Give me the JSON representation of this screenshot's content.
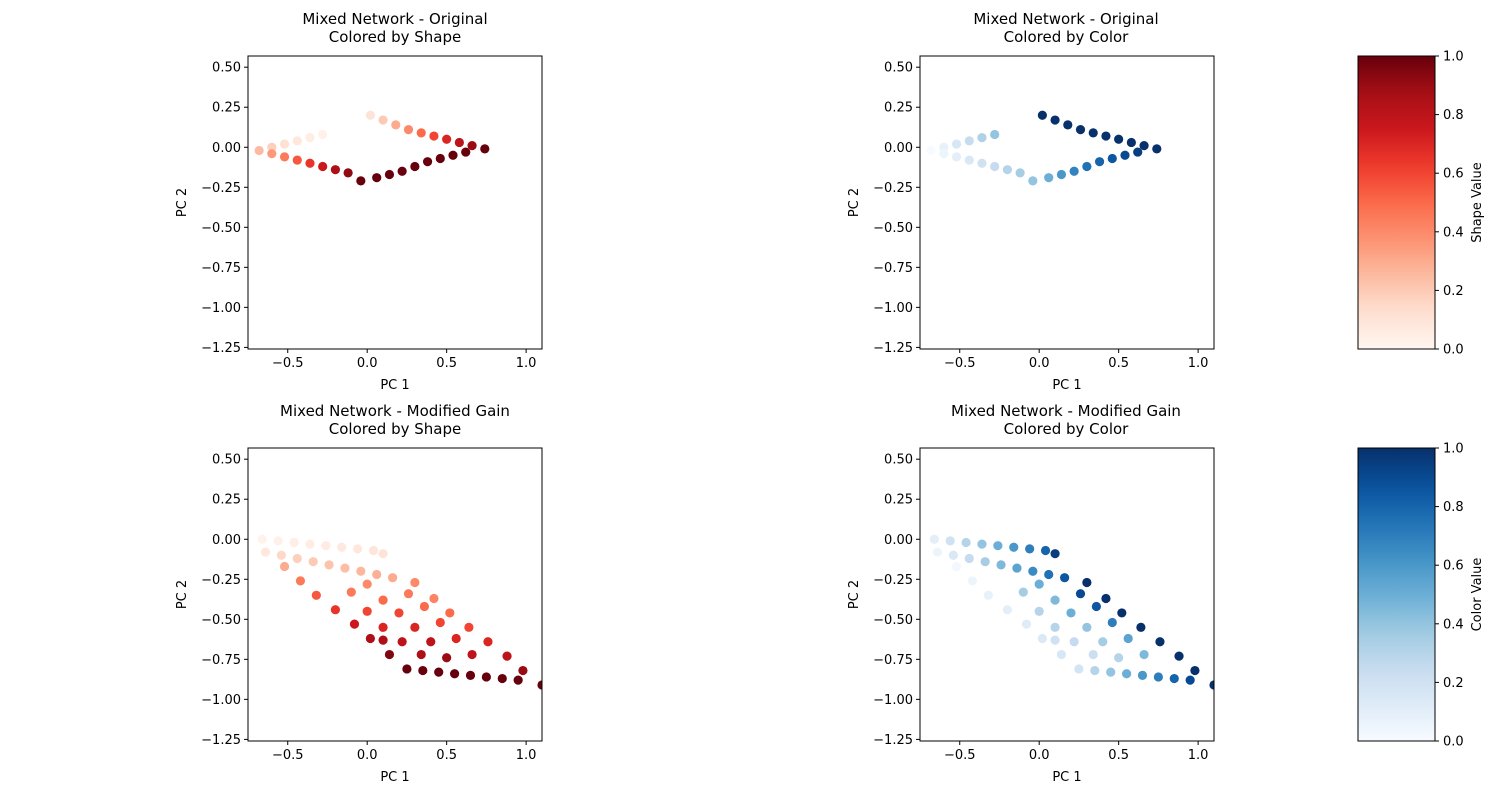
{
  "chart_data": [
    {
      "type": "scatter",
      "title": "Mixed Network - Original\nColored by Shape",
      "xlabel": "PC 1",
      "ylabel": "PC 2",
      "xlim": [
        -0.75,
        1.1
      ],
      "ylim": [
        -1.26,
        0.57
      ],
      "xticks": [
        -0.5,
        0.0,
        0.5,
        1.0
      ],
      "xtick_labels": [
        "−0.5",
        "0.0",
        "0.5",
        "1.0"
      ],
      "yticks": [
        0.5,
        0.25,
        0.0,
        -0.25,
        -0.5,
        -0.75,
        -1.0,
        -1.25
      ],
      "ytick_labels": [
        "0.50",
        "0.25",
        "0.00",
        "−0.25",
        "−0.50",
        "−0.75",
        "−1.00",
        "−1.25"
      ],
      "colormap": "Reds",
      "color_by": "shape",
      "grid": false,
      "points": [
        {
          "x": -0.68,
          "y": -0.02,
          "shape": 0.25,
          "color": 0.0
        },
        {
          "x": -0.6,
          "y": 0.0,
          "shape": 0.18,
          "color": 0.08
        },
        {
          "x": -0.52,
          "y": 0.02,
          "shape": 0.12,
          "color": 0.16
        },
        {
          "x": -0.44,
          "y": 0.04,
          "shape": 0.08,
          "color": 0.24
        },
        {
          "x": -0.36,
          "y": 0.06,
          "shape": 0.05,
          "color": 0.32
        },
        {
          "x": -0.28,
          "y": 0.08,
          "shape": 0.03,
          "color": 0.4
        },
        {
          "x": -0.6,
          "y": -0.04,
          "shape": 0.35,
          "color": 0.05
        },
        {
          "x": -0.52,
          "y": -0.06,
          "shape": 0.45,
          "color": 0.1
        },
        {
          "x": -0.44,
          "y": -0.08,
          "shape": 0.55,
          "color": 0.15
        },
        {
          "x": -0.36,
          "y": -0.1,
          "shape": 0.65,
          "color": 0.2
        },
        {
          "x": -0.28,
          "y": -0.12,
          "shape": 0.75,
          "color": 0.25
        },
        {
          "x": -0.2,
          "y": -0.14,
          "shape": 0.85,
          "color": 0.3
        },
        {
          "x": -0.12,
          "y": -0.16,
          "shape": 0.92,
          "color": 0.35
        },
        {
          "x": -0.04,
          "y": -0.21,
          "shape": 1.0,
          "color": 0.4
        },
        {
          "x": 0.06,
          "y": -0.19,
          "shape": 1.0,
          "color": 0.5
        },
        {
          "x": 0.14,
          "y": -0.17,
          "shape": 1.0,
          "color": 0.6
        },
        {
          "x": 0.22,
          "y": -0.15,
          "shape": 1.0,
          "color": 0.68
        },
        {
          "x": 0.3,
          "y": -0.12,
          "shape": 1.0,
          "color": 0.75
        },
        {
          "x": 0.38,
          "y": -0.09,
          "shape": 1.0,
          "color": 0.8
        },
        {
          "x": 0.46,
          "y": -0.07,
          "shape": 1.0,
          "color": 0.85
        },
        {
          "x": 0.54,
          "y": -0.05,
          "shape": 1.0,
          "color": 0.9
        },
        {
          "x": 0.62,
          "y": -0.03,
          "shape": 1.0,
          "color": 0.95
        },
        {
          "x": 0.74,
          "y": -0.01,
          "shape": 1.0,
          "color": 1.0
        },
        {
          "x": 0.66,
          "y": 0.01,
          "shape": 0.9,
          "color": 1.0
        },
        {
          "x": 0.58,
          "y": 0.03,
          "shape": 0.8,
          "color": 1.0
        },
        {
          "x": 0.5,
          "y": 0.05,
          "shape": 0.7,
          "color": 1.0
        },
        {
          "x": 0.42,
          "y": 0.07,
          "shape": 0.6,
          "color": 1.0
        },
        {
          "x": 0.34,
          "y": 0.09,
          "shape": 0.5,
          "color": 1.0
        },
        {
          "x": 0.26,
          "y": 0.11,
          "shape": 0.4,
          "color": 1.0
        },
        {
          "x": 0.18,
          "y": 0.14,
          "shape": 0.3,
          "color": 1.0
        },
        {
          "x": 0.1,
          "y": 0.17,
          "shape": 0.2,
          "color": 1.0
        },
        {
          "x": 0.02,
          "y": 0.2,
          "shape": 0.1,
          "color": 1.0
        }
      ]
    },
    {
      "type": "scatter",
      "title": "Mixed Network - Original\nColored by Color",
      "xlabel": "PC 1",
      "ylabel": "PC 2",
      "xlim": [
        -0.75,
        1.1
      ],
      "ylim": [
        -1.26,
        0.57
      ],
      "xticks": [
        -0.5,
        0.0,
        0.5,
        1.0
      ],
      "xtick_labels": [
        "−0.5",
        "0.0",
        "0.5",
        "1.0"
      ],
      "yticks": [
        0.5,
        0.25,
        0.0,
        -0.25,
        -0.5,
        -0.75,
        -1.0,
        -1.25
      ],
      "ytick_labels": [
        "0.50",
        "0.25",
        "0.00",
        "−0.25",
        "−0.50",
        "−0.75",
        "−1.00",
        "−1.25"
      ],
      "colormap": "Blues",
      "color_by": "color",
      "grid": false,
      "points_ref": "same grid as panel 1"
    },
    {
      "type": "scatter",
      "title": "Mixed Network - Modified Gain\nColored by Shape",
      "xlabel": "PC 1",
      "ylabel": "PC 2",
      "xlim": [
        -0.75,
        1.1
      ],
      "ylim": [
        -1.26,
        0.57
      ],
      "xticks": [
        -0.5,
        0.0,
        0.5,
        1.0
      ],
      "xtick_labels": [
        "−0.5",
        "0.0",
        "0.5",
        "1.0"
      ],
      "yticks": [
        0.5,
        0.25,
        0.0,
        -0.25,
        -0.5,
        -0.75,
        -1.0,
        -1.25
      ],
      "ytick_labels": [
        "0.50",
        "0.25",
        "0.00",
        "−0.25",
        "−0.50",
        "−0.75",
        "−1.00",
        "−1.25"
      ],
      "colormap": "Reds",
      "color_by": "shape",
      "grid": false,
      "points": [
        {
          "x": -0.66,
          "y": 0.0,
          "shape": 0.02,
          "color": 0.1
        },
        {
          "x": -0.56,
          "y": -0.01,
          "shape": 0.03,
          "color": 0.2
        },
        {
          "x": -0.46,
          "y": -0.02,
          "shape": 0.04,
          "color": 0.3
        },
        {
          "x": -0.36,
          "y": -0.03,
          "shape": 0.05,
          "color": 0.4
        },
        {
          "x": -0.26,
          "y": -0.04,
          "shape": 0.06,
          "color": 0.5
        },
        {
          "x": -0.16,
          "y": -0.05,
          "shape": 0.07,
          "color": 0.6
        },
        {
          "x": -0.06,
          "y": -0.06,
          "shape": 0.08,
          "color": 0.7
        },
        {
          "x": 0.04,
          "y": -0.07,
          "shape": 0.09,
          "color": 0.8
        },
        {
          "x": 0.1,
          "y": -0.09,
          "shape": 0.1,
          "color": 0.95
        },
        {
          "x": -0.64,
          "y": -0.08,
          "shape": 0.08,
          "color": 0.05
        },
        {
          "x": -0.54,
          "y": -0.1,
          "shape": 0.15,
          "color": 0.15
        },
        {
          "x": -0.44,
          "y": -0.12,
          "shape": 0.18,
          "color": 0.25
        },
        {
          "x": -0.34,
          "y": -0.14,
          "shape": 0.2,
          "color": 0.35
        },
        {
          "x": -0.24,
          "y": -0.16,
          "shape": 0.22,
          "color": 0.45
        },
        {
          "x": -0.14,
          "y": -0.18,
          "shape": 0.24,
          "color": 0.55
        },
        {
          "x": -0.04,
          "y": -0.2,
          "shape": 0.26,
          "color": 0.65
        },
        {
          "x": 0.06,
          "y": -0.22,
          "shape": 0.28,
          "color": 0.75
        },
        {
          "x": 0.16,
          "y": -0.24,
          "shape": 0.3,
          "color": 0.85
        },
        {
          "x": 0.3,
          "y": -0.27,
          "shape": 0.4,
          "color": 1.0
        },
        {
          "x": -0.52,
          "y": -0.17,
          "shape": 0.3,
          "color": 0.02
        },
        {
          "x": -0.42,
          "y": -0.26,
          "shape": 0.45,
          "color": 0.05
        },
        {
          "x": -0.32,
          "y": -0.35,
          "shape": 0.55,
          "color": 0.08
        },
        {
          "x": -0.2,
          "y": -0.44,
          "shape": 0.65,
          "color": 0.1
        },
        {
          "x": -0.08,
          "y": -0.53,
          "shape": 0.75,
          "color": 0.12
        },
        {
          "x": 0.02,
          "y": -0.62,
          "shape": 0.85,
          "color": 0.14
        },
        {
          "x": 0.14,
          "y": -0.72,
          "shape": 0.95,
          "color": 0.16
        },
        {
          "x": 0.25,
          "y": -0.81,
          "shape": 1.0,
          "color": 0.18
        },
        {
          "x": 0.35,
          "y": -0.82,
          "shape": 1.0,
          "color": 0.3
        },
        {
          "x": 0.45,
          "y": -0.83,
          "shape": 1.0,
          "color": 0.4
        },
        {
          "x": 0.55,
          "y": -0.84,
          "shape": 1.0,
          "color": 0.5
        },
        {
          "x": 0.65,
          "y": -0.85,
          "shape": 1.0,
          "color": 0.6
        },
        {
          "x": 0.75,
          "y": -0.86,
          "shape": 1.0,
          "color": 0.7
        },
        {
          "x": 0.85,
          "y": -0.87,
          "shape": 1.0,
          "color": 0.8
        },
        {
          "x": 0.95,
          "y": -0.88,
          "shape": 1.0,
          "color": 0.9
        },
        {
          "x": 1.1,
          "y": -0.91,
          "shape": 1.0,
          "color": 1.0
        },
        {
          "x": 0.98,
          "y": -0.82,
          "shape": 0.9,
          "color": 1.0
        },
        {
          "x": 0.88,
          "y": -0.73,
          "shape": 0.8,
          "color": 1.0
        },
        {
          "x": 0.76,
          "y": -0.64,
          "shape": 0.7,
          "color": 1.0
        },
        {
          "x": 0.64,
          "y": -0.55,
          "shape": 0.6,
          "color": 1.0
        },
        {
          "x": 0.52,
          "y": -0.46,
          "shape": 0.5,
          "color": 1.0
        },
        {
          "x": 0.42,
          "y": -0.37,
          "shape": 0.42,
          "color": 1.0
        },
        {
          "x": 0.36,
          "y": -0.42,
          "shape": 0.5,
          "color": 0.85
        },
        {
          "x": 0.46,
          "y": -0.52,
          "shape": 0.6,
          "color": 0.7
        },
        {
          "x": 0.56,
          "y": -0.62,
          "shape": 0.7,
          "color": 0.55
        },
        {
          "x": 0.66,
          "y": -0.72,
          "shape": 0.8,
          "color": 0.45
        },
        {
          "x": 0.26,
          "y": -0.34,
          "shape": 0.45,
          "color": 0.9
        },
        {
          "x": 0.2,
          "y": -0.46,
          "shape": 0.6,
          "color": 0.5
        },
        {
          "x": 0.3,
          "y": -0.55,
          "shape": 0.7,
          "color": 0.4
        },
        {
          "x": 0.4,
          "y": -0.64,
          "shape": 0.8,
          "color": 0.35
        },
        {
          "x": 0.5,
          "y": -0.74,
          "shape": 0.9,
          "color": 0.3
        },
        {
          "x": 0.1,
          "y": -0.38,
          "shape": 0.5,
          "color": 0.45
        },
        {
          "x": 0.1,
          "y": -0.55,
          "shape": 0.7,
          "color": 0.3
        },
        {
          "x": 0.22,
          "y": -0.64,
          "shape": 0.8,
          "color": 0.25
        },
        {
          "x": 0.34,
          "y": -0.72,
          "shape": 0.85,
          "color": 0.22
        },
        {
          "x": 0.0,
          "y": -0.28,
          "shape": 0.4,
          "color": 0.5
        },
        {
          "x": -0.1,
          "y": -0.33,
          "shape": 0.45,
          "color": 0.35
        },
        {
          "x": 0.0,
          "y": -0.45,
          "shape": 0.6,
          "color": 0.3
        },
        {
          "x": 0.1,
          "y": -0.63,
          "shape": 0.85,
          "color": 0.2
        }
      ]
    },
    {
      "type": "scatter",
      "title": "Mixed Network - Modified Gain\nColored by Color",
      "xlabel": "PC 1",
      "ylabel": "PC 2",
      "xlim": [
        -0.75,
        1.1
      ],
      "ylim": [
        -1.26,
        0.57
      ],
      "xticks": [
        -0.5,
        0.0,
        0.5,
        1.0
      ],
      "xtick_labels": [
        "−0.5",
        "0.0",
        "0.5",
        "1.0"
      ],
      "yticks": [
        0.5,
        0.25,
        0.0,
        -0.25,
        -0.5,
        -0.75,
        -1.0,
        -1.25
      ],
      "ytick_labels": [
        "0.50",
        "0.25",
        "0.00",
        "−0.25",
        "−0.50",
        "−0.75",
        "−1.00",
        "−1.25"
      ],
      "colormap": "Blues",
      "color_by": "color",
      "grid": false,
      "points_ref": "same grid as panel 3"
    }
  ],
  "colorbars": [
    {
      "label": "Shape Value",
      "colormap": "Reds",
      "range": [
        0.0,
        1.0
      ],
      "ticks": [
        "0.0",
        "0.2",
        "0.4",
        "0.6",
        "0.8",
        "1.0"
      ]
    },
    {
      "label": "Color Value",
      "colormap": "Blues",
      "range": [
        0.0,
        1.0
      ],
      "ticks": [
        "0.0",
        "0.2",
        "0.4",
        "0.6",
        "0.8",
        "1.0"
      ]
    }
  ],
  "colors": {
    "reds": [
      "#fff5f0",
      "#fee0d2",
      "#fcbba1",
      "#fc9272",
      "#fb6a4a",
      "#ef3b2c",
      "#cb181d",
      "#a50f15",
      "#67000d"
    ],
    "blues": [
      "#f7fbff",
      "#deebf7",
      "#c6dbef",
      "#9ecae1",
      "#6baed6",
      "#4292c6",
      "#2171b5",
      "#08519c",
      "#08306b"
    ]
  }
}
